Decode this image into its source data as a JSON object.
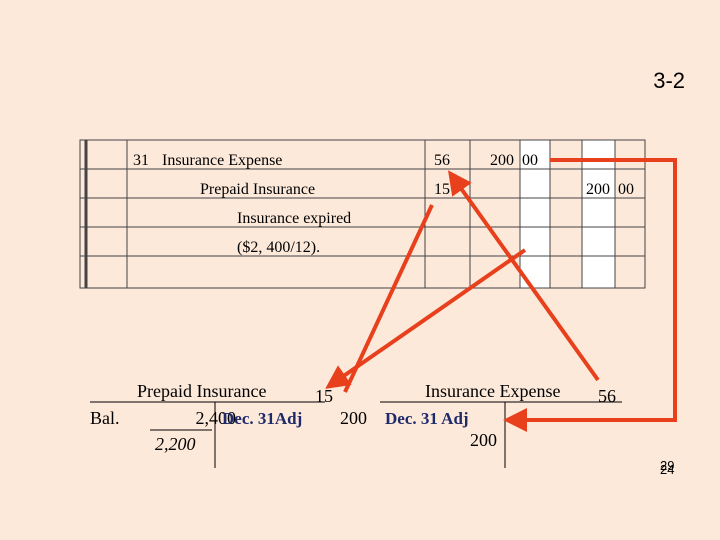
{
  "slide_number": "3-2",
  "journal": {
    "rows": [
      {
        "date": "31",
        "account": "Insurance Expense",
        "ref": "56",
        "debit": "200  00",
        "credit": null
      },
      {
        "date": null,
        "account": "Prepaid Insurance",
        "ref": "15",
        "debit": null,
        "credit": "200  00"
      },
      {
        "date": null,
        "account": "Insurance expired",
        "ref": null,
        "debit": null,
        "credit": null
      },
      {
        "date": null,
        "account": "($2, 400/12).",
        "ref": null,
        "debit": null,
        "credit": null
      }
    ]
  },
  "ledger_left": {
    "title": "Prepaid Insurance",
    "number": "15",
    "bal_label": "Bal.",
    "bal_value": "2,400",
    "entry_label": "Dec. 31Adj",
    "entry_value": "200",
    "ending": "2,200"
  },
  "ledger_right": {
    "title": "Insurance Expense",
    "number": "56",
    "entry_label": "Dec. 31 Adj",
    "entry_value": "200"
  },
  "page_numbers": [
    "29",
    "24"
  ]
}
